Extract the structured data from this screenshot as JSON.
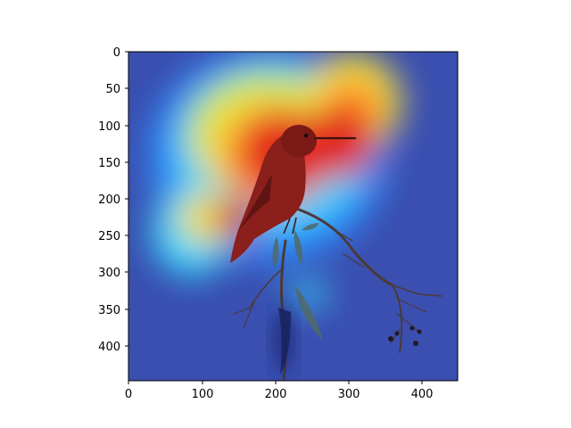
{
  "figure": {
    "image_semantic": "hummingbird-on-branch-with-heatmap-overlay",
    "colormap": "jet",
    "colors": {
      "heatmap_low": "#3a4fb0",
      "heatmap_mid_blue": "#2f8cff",
      "heatmap_cyan": "#33d6ff",
      "heatmap_yellow": "#f0e040",
      "heatmap_high": "#e2231a",
      "bird": "#8a1f1c",
      "branch": "#4a3a38",
      "axis": "#000000"
    }
  },
  "axes": {
    "x_ticks": [
      "0",
      "100",
      "200",
      "300",
      "400"
    ],
    "y_ticks": [
      "0",
      "50",
      "100",
      "150",
      "200",
      "250",
      "300",
      "350",
      "400"
    ]
  }
}
